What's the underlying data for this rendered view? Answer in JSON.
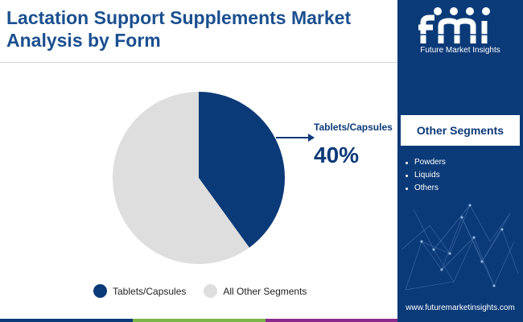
{
  "header": {
    "title": "Lactation Support Supplements Market\nAnalysis by Form"
  },
  "brand": {
    "name": "Future Market Insights",
    "website": "www.futuremarketinsights.com",
    "logo_icon": "fmi-logo-icon"
  },
  "sidebar": {
    "segments_title": "Other Segments",
    "segments": [
      "Powders",
      "Liquids",
      "Others"
    ]
  },
  "chart_data": {
    "type": "pie",
    "slices": [
      {
        "label": "Tablets/Capsules",
        "value": 40,
        "color": "#0b3a78"
      },
      {
        "label": "All Other Segments",
        "value": 60,
        "color": "#dedede"
      }
    ],
    "callout": {
      "label": "Tablets/Capsules",
      "value_text": "40%"
    },
    "legend_position": "bottom"
  },
  "colors": {
    "primary": "#0b3a78",
    "title": "#1b4f8f",
    "other": "#dedede",
    "bottom_bar": [
      "#0b3a78",
      "#7ab648",
      "#8b2a8c",
      "#0b3a78"
    ]
  }
}
